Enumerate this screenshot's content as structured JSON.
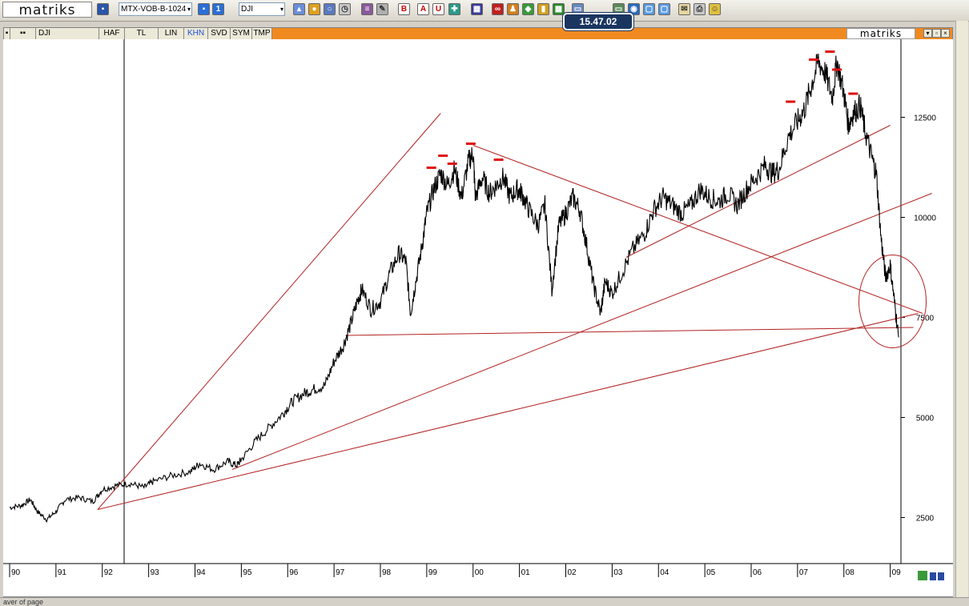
{
  "toolbar": {
    "logo": "matriks",
    "template_select": "MTX-VOB-B-1024",
    "symbol_select": "DJI",
    "letter_buttons": [
      "B",
      "A",
      "U"
    ]
  },
  "readout": "15.47.02",
  "tabs": [
    "DJI",
    "HAF",
    "TL",
    "LIN",
    "KHN",
    "SVD",
    "SYM",
    "TMP"
  ],
  "active_tab": "KHN",
  "chart_brand": "matriks",
  "status_text": "aver of page",
  "colors": {
    "tab_orange": "#f08a20",
    "trend_red": "#b22222",
    "marker_red": "#e01010",
    "readout_bg": "#1a3560"
  },
  "chart_data": {
    "type": "line",
    "symbol": "DJI",
    "x_tick_labels": [
      "90",
      "91",
      "92",
      "93",
      "94",
      "95",
      "96",
      "97",
      "98",
      "99",
      "00",
      "01",
      "02",
      "03",
      "04",
      "05",
      "06",
      "07",
      "08",
      "09"
    ],
    "y_tick_labels": [
      "2500",
      "5000",
      "7500",
      "10000",
      "12500"
    ],
    "y_ticks": [
      2500,
      5000,
      7500,
      10000,
      12500
    ],
    "xlim": [
      1990.0,
      2009.3
    ],
    "ylim": [
      1350,
      14450
    ],
    "series": [
      {
        "x": [
          1990.0,
          1990.25,
          1990.45,
          1990.6,
          1990.8,
          1991.0,
          1991.2,
          1991.5,
          1991.8,
          1992.0,
          1992.3,
          1992.6,
          1992.9,
          1993.1,
          1993.5,
          1993.9,
          1994.1,
          1994.4,
          1994.7,
          1994.9,
          1995.0,
          1995.3,
          1995.6,
          1995.9,
          1996.1,
          1996.35,
          1996.55,
          1996.8,
          1997.0,
          1997.2,
          1997.35,
          1997.5,
          1997.6,
          1997.8,
          1998.0,
          1998.2,
          1998.4,
          1998.55,
          1998.65,
          1998.75,
          1998.9,
          1999.0,
          1999.15,
          1999.3,
          1999.45,
          1999.6,
          1999.75,
          1999.9,
          2000.0,
          2000.05,
          2000.2,
          2000.35,
          2000.5,
          2000.65,
          2000.8,
          2000.95,
          2001.05,
          2001.2,
          2001.4,
          2001.55,
          2001.7,
          2001.85,
          2002.0,
          2002.15,
          2002.3,
          2002.45,
          2002.6,
          2002.75,
          2002.85,
          2003.0,
          2003.2,
          2003.45,
          2003.7,
          2003.9,
          2004.1,
          2004.3,
          2004.5,
          2004.7,
          2004.9,
          2005.1,
          2005.3,
          2005.5,
          2005.7,
          2005.9,
          2006.1,
          2006.3,
          2006.45,
          2006.6,
          2006.8,
          2007.0,
          2007.15,
          2007.3,
          2007.45,
          2007.6,
          2007.75,
          2007.85,
          2008.0,
          2008.1,
          2008.2,
          2008.35,
          2008.45,
          2008.6,
          2008.7,
          2008.8,
          2008.9,
          2009.0,
          2009.1,
          2009.18
        ],
        "y": [
          2750,
          2800,
          2950,
          2650,
          2450,
          2650,
          2950,
          3000,
          2900,
          3200,
          3300,
          3350,
          3250,
          3400,
          3550,
          3650,
          3850,
          3700,
          3900,
          3800,
          3950,
          4400,
          4750,
          5100,
          5400,
          5600,
          5700,
          5800,
          6400,
          6800,
          7300,
          7900,
          8200,
          7700,
          7900,
          8600,
          9100,
          8900,
          7600,
          8300,
          9300,
          10100,
          10700,
          11100,
          10800,
          11200,
          10500,
          11400,
          11600,
          10500,
          11000,
          10600,
          10800,
          11000,
          10500,
          10700,
          10600,
          10200,
          9800,
          10300,
          8200,
          9800,
          10100,
          10500,
          10200,
          9300,
          8300,
          7600,
          8400,
          8100,
          8600,
          9200,
          9600,
          10200,
          10500,
          10300,
          10100,
          10300,
          10700,
          10500,
          10400,
          10600,
          10300,
          10700,
          11000,
          11300,
          11100,
          11200,
          12000,
          12400,
          12700,
          13300,
          13900,
          13600,
          13000,
          13900,
          13100,
          12300,
          12600,
          12800,
          12200,
          11500,
          11100,
          9500,
          8500,
          8800,
          7800,
          7000
        ]
      }
    ],
    "trendlines": [
      {
        "x": [
          1991.9,
          1999.3
        ],
        "y": [
          2700,
          12600
        ]
      },
      {
        "x": [
          1994.8,
          2009.9
        ],
        "y": [
          3700,
          10600
        ]
      },
      {
        "x": [
          1991.9,
          2009.6
        ],
        "y": [
          2700,
          7600
        ]
      },
      {
        "x": [
          2000.0,
          2009.7
        ],
        "y": [
          11800,
          7600
        ]
      },
      {
        "x": [
          1997.25,
          2009.5
        ],
        "y": [
          7050,
          7250
        ]
      },
      {
        "x": [
          2003.3,
          2009.0
        ],
        "y": [
          9000,
          12300
        ]
      }
    ],
    "peak_markers": [
      {
        "x": 1999.1,
        "y": 11150
      },
      {
        "x": 1999.35,
        "y": 11450
      },
      {
        "x": 1999.55,
        "y": 11250
      },
      {
        "x": 1999.95,
        "y": 11750
      },
      {
        "x": 2000.55,
        "y": 11350
      },
      {
        "x": 2006.85,
        "y": 12800
      },
      {
        "x": 2007.35,
        "y": 13850
      },
      {
        "x": 2007.7,
        "y": 14050
      },
      {
        "x": 2007.85,
        "y": 13600
      },
      {
        "x": 2008.2,
        "y": 13000
      }
    ],
    "circle_annotation": {
      "x": 2009.05,
      "y": 7900
    }
  }
}
